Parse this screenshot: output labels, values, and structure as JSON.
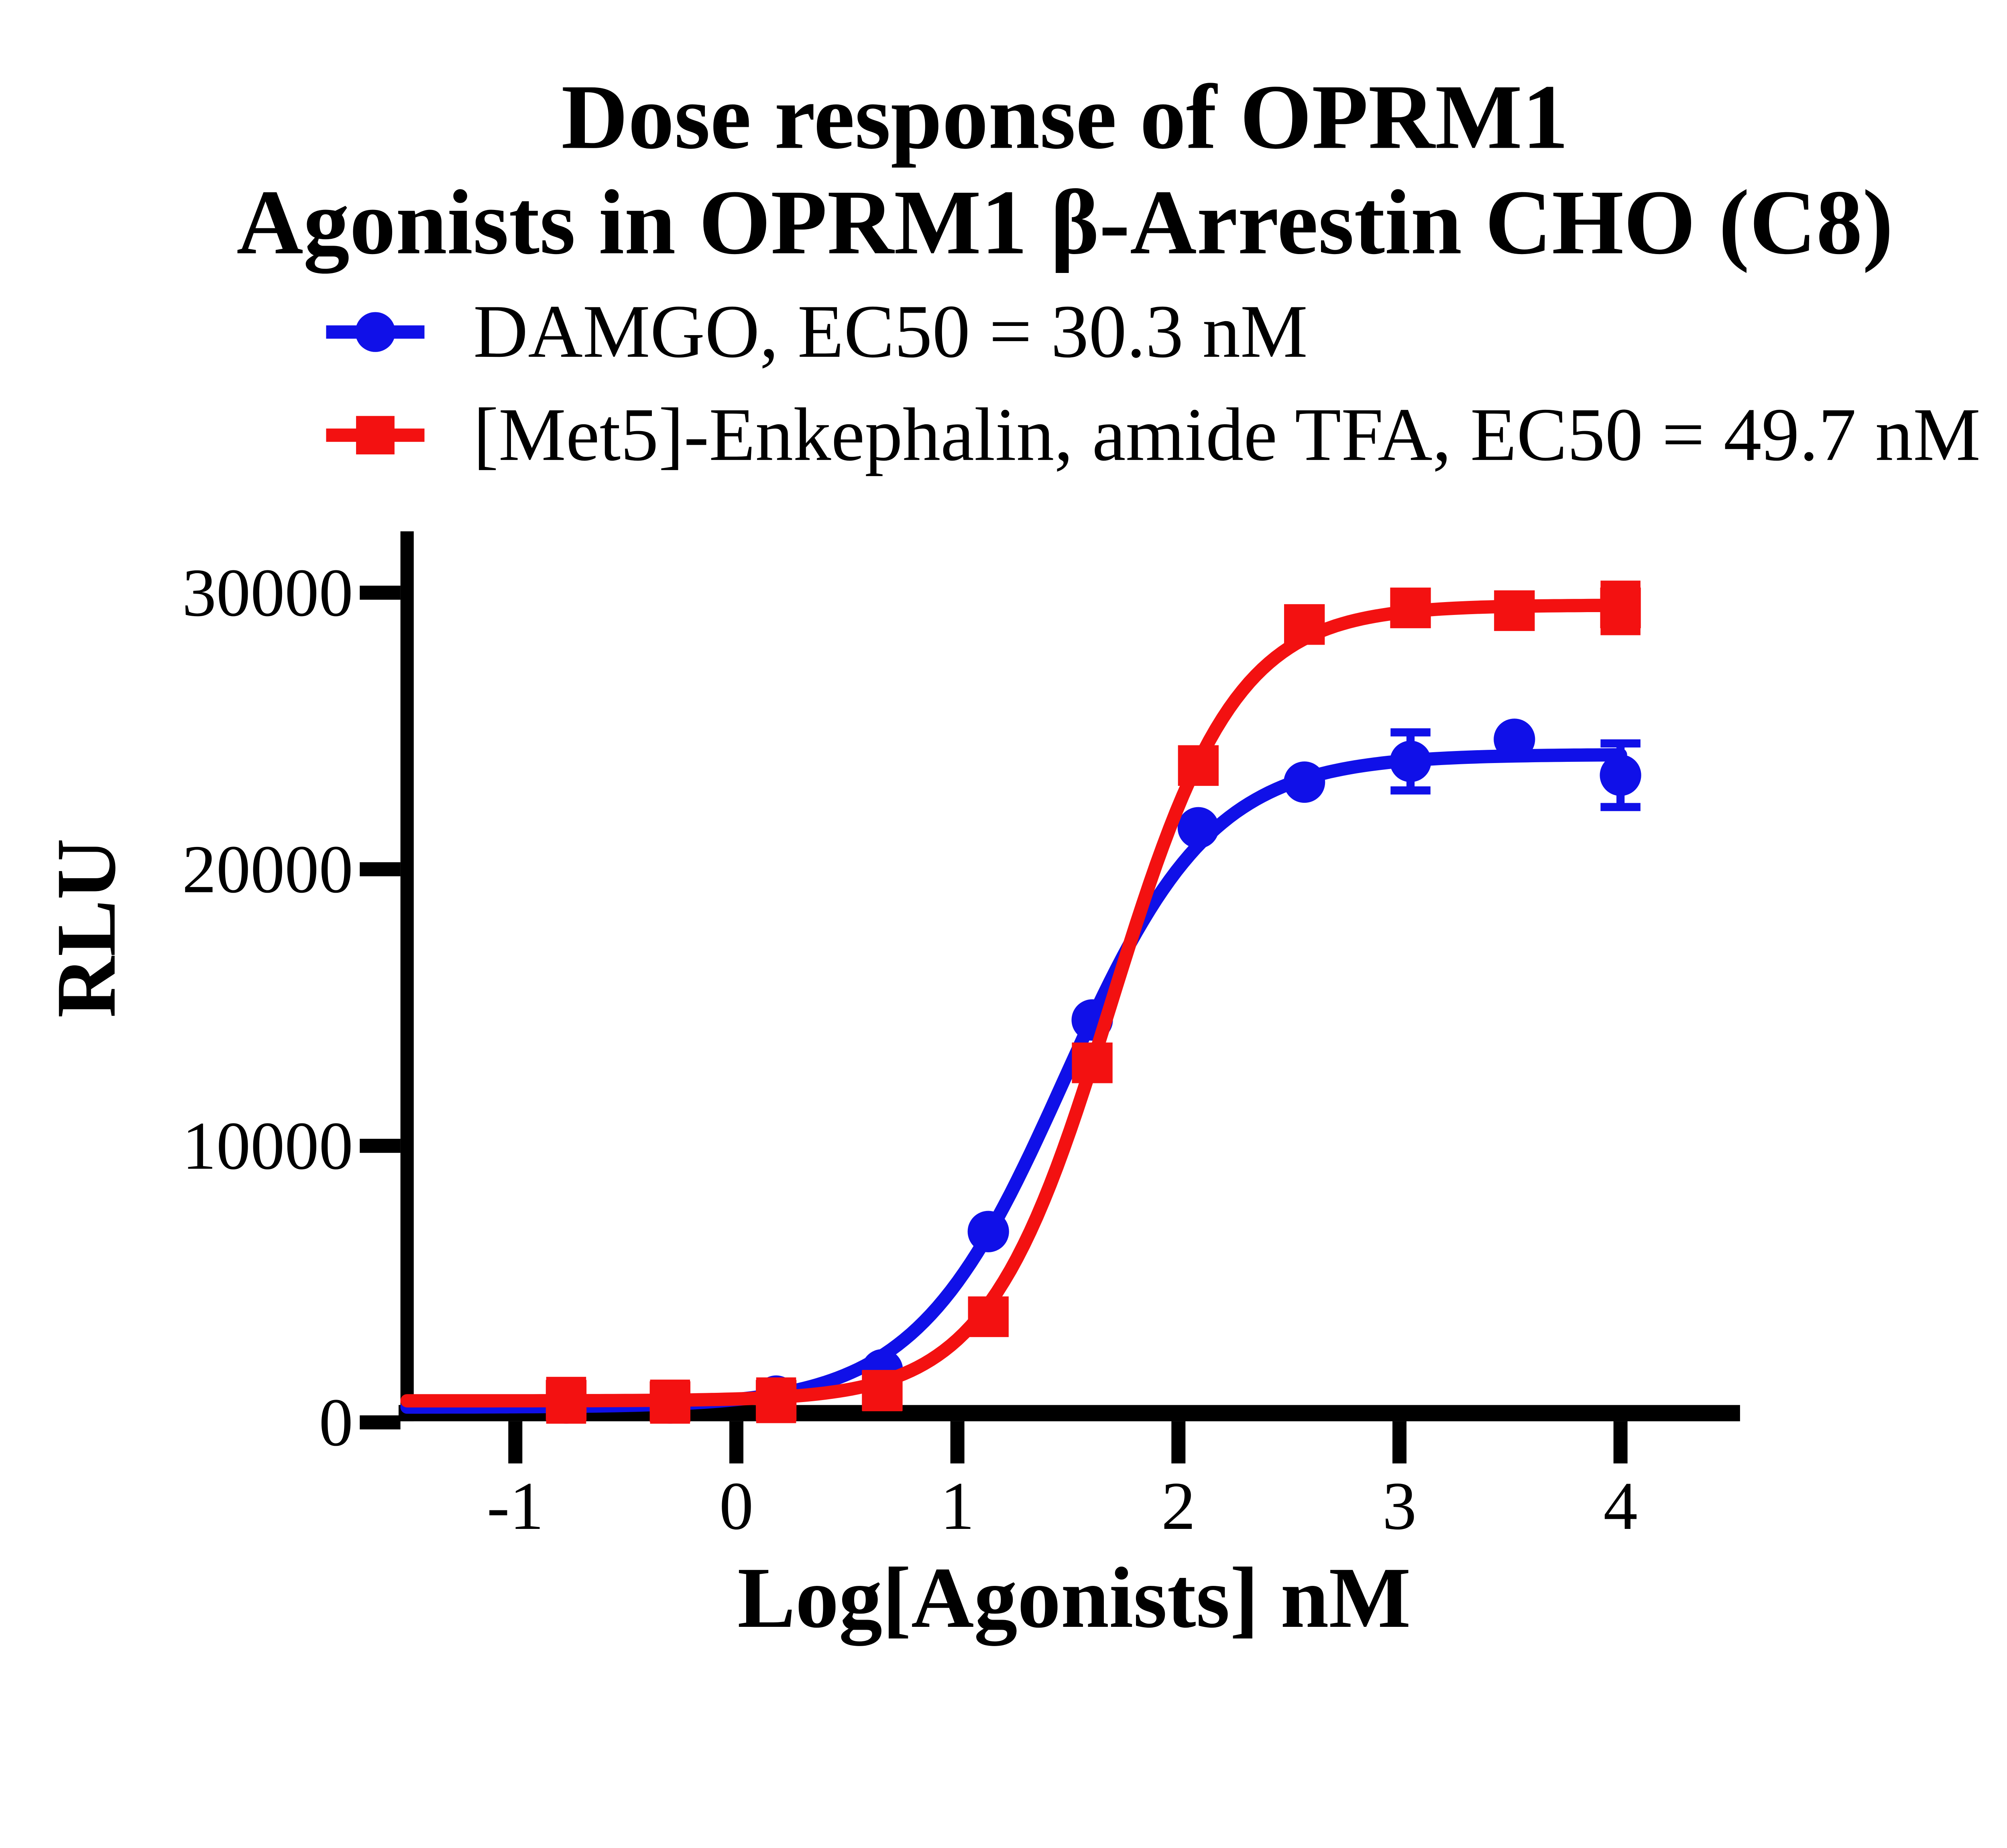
{
  "chart_data": {
    "type": "scatter-line",
    "title": "Dose response of OPRM1 Agonists in OPRM1 β-Arrestin CHO (C8)",
    "title_lines": [
      "Dose response of OPRM1",
      "Agonists in OPRM1 β-Arrestin CHO (C8)"
    ],
    "xlabel": "Log[Agonists] nM",
    "ylabel": "RLU",
    "x_axis": {
      "min": -1.49,
      "max": 4.53,
      "ticks": [
        -1,
        0,
        1,
        2,
        3,
        4
      ],
      "tick_labels": [
        "-1",
        "0",
        "1",
        "2",
        "3",
        "4"
      ]
    },
    "y_axis": {
      "min": 0,
      "max": 32200,
      "ticks": [
        0,
        10000,
        20000,
        30000
      ],
      "tick_labels": [
        "0",
        "10000",
        "20000",
        "30000"
      ]
    },
    "grid": false,
    "legend_position": "top-left",
    "series": [
      {
        "name": "DAMGO",
        "legend_label": "DAMGO, EC50 = 30.3 nM",
        "ec50_nM": 30.3,
        "color": "#1010e8",
        "marker": "circle",
        "x": [
          -0.77,
          -0.3,
          0.18,
          0.66,
          1.14,
          1.61,
          2.09,
          2.57,
          3.05,
          3.52,
          4.0
        ],
        "y": [
          700,
          700,
          950,
          1900,
          6900,
          14550,
          21500,
          23150,
          23900,
          24700,
          23400
        ],
        "err": [
          null,
          null,
          null,
          null,
          null,
          null,
          null,
          null,
          1050,
          null,
          1150
        ],
        "fit": {
          "bottom": 550,
          "top": 24150,
          "logEC50": 1.481,
          "hill": 1.3
        }
      },
      {
        "name": "[Met5]-Enkephalin, amide TFA",
        "legend_label": "[Met5]-Enkephalin, amide TFA, EC50 = 49.7 nM",
        "ec50_nM": 49.7,
        "color": "#f31111",
        "marker": "square",
        "x": [
          -0.77,
          -0.3,
          0.18,
          0.66,
          1.14,
          1.61,
          2.09,
          2.57,
          3.05,
          3.52,
          4.0
        ],
        "y": [
          800,
          750,
          800,
          1150,
          3820,
          13000,
          23750,
          28850,
          29450,
          29350,
          29450
        ],
        "err": [
          700,
          650,
          680,
          600,
          null,
          null,
          null,
          null,
          null,
          null,
          840
        ],
        "fit": {
          "bottom": 780,
          "top": 29550,
          "logEC50": 1.696,
          "hill": 1.55
        }
      }
    ]
  }
}
